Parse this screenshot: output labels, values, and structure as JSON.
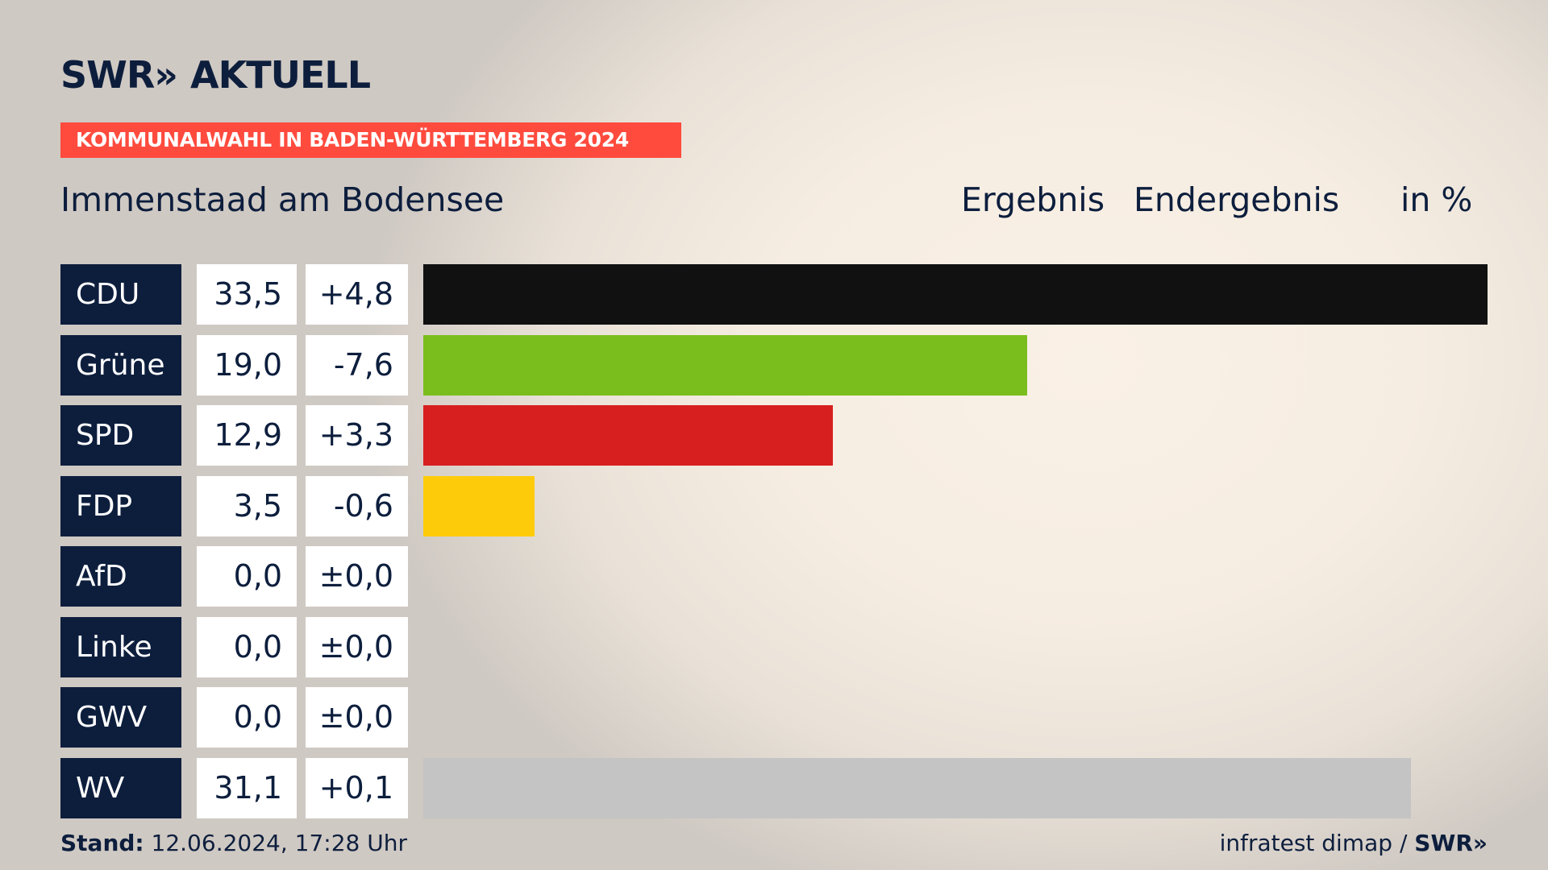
{
  "brand": {
    "logo_left": "SWR»",
    "logo_right": "AKTUELL"
  },
  "tag": "KOMMUNALWAHL IN BADEN-WÜRTTEMBERG 2024",
  "region": "Immenstaad am Bodensee",
  "headers": {
    "result": "Ergebnis",
    "status": "Endergebnis",
    "unit": "in %"
  },
  "footer": {
    "stand_label": "Stand:",
    "stand_value": "12.06.2024, 17:28 Uhr",
    "source": "infratest dimap /",
    "source_brand": "SWR»"
  },
  "colors": {
    "accent": "#ff4b3e",
    "navy": "#0d1e3d"
  },
  "chart_data": {
    "type": "bar",
    "title": "Immenstaad am Bodensee",
    "unit": "in %",
    "max_value": 33.5,
    "categories": [
      "CDU",
      "Grüne",
      "SPD",
      "FDP",
      "AfD",
      "Linke",
      "GWV",
      "WV"
    ],
    "values": [
      33.5,
      19.0,
      12.9,
      3.5,
      0.0,
      0.0,
      0.0,
      31.1
    ],
    "value_labels": [
      "33,5",
      "19,0",
      "12,9",
      "3,5",
      "0,0",
      "0,0",
      "0,0",
      "31,1"
    ],
    "diff_labels": [
      "+4,8",
      "-7,6",
      "+3,3",
      "-0,6",
      "±0,0",
      "±0,0",
      "±0,0",
      "+0,1"
    ],
    "colors": [
      "#111111",
      "#7abe1e",
      "#d71f1f",
      "#fecb0a",
      "#0096d6",
      "#c0204a",
      "#888888",
      "#c4c4c4"
    ]
  }
}
